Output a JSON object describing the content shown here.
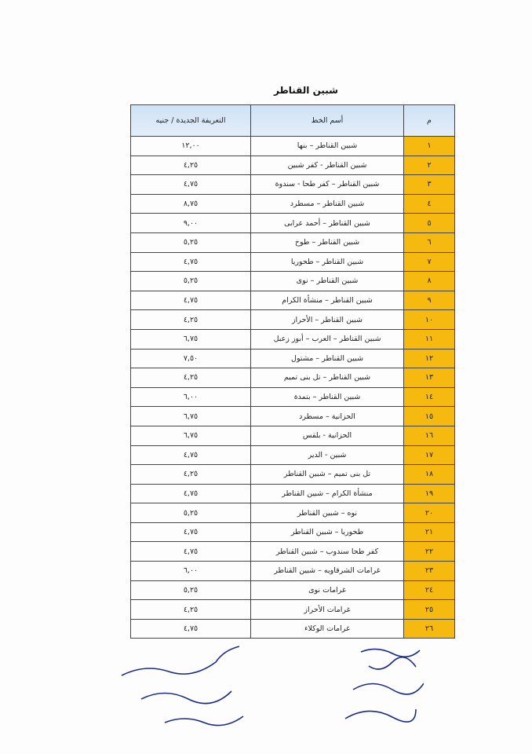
{
  "title": "شبين القناطر",
  "headers": {
    "number": "م",
    "line_name": "أسم الخط",
    "fare": "التعريفة الجديدة / جنيه"
  },
  "colors": {
    "number_column": "#f6b90f",
    "header": "#d6e6f5"
  },
  "rows": [
    {
      "n": "١",
      "name": "شبين القناطر – بنها",
      "fare": "١٢,٠٠"
    },
    {
      "n": "٢",
      "name": "شبين القناطر - كفر شبين",
      "fare": "٤,٢٥"
    },
    {
      "n": "٣",
      "name": "شبين القناطر – كفر طحا - سندوة",
      "fare": "٤,٧٥"
    },
    {
      "n": "٤",
      "name": "شبين القناطر – مسطرد",
      "fare": "٨,٧٥"
    },
    {
      "n": "٥",
      "name": "شبين القناطر – أحمد عرابى",
      "fare": "٩,٠٠"
    },
    {
      "n": "٦",
      "name": "شبين القناطر – طوخ",
      "fare": "٥,٢٥"
    },
    {
      "n": "٧",
      "name": "شبين القناطر – طحوريا",
      "fare": "٤,٧٥"
    },
    {
      "n": "٨",
      "name": "شبين القناطر – نوى",
      "fare": "٥,٢٥"
    },
    {
      "n": "٩",
      "name": "شبين القناطر – منشأة الكرام",
      "fare": "٤,٧٥"
    },
    {
      "n": "١٠",
      "name": "شبين القناطر – الأحراز",
      "fare": "٤,٢٥"
    },
    {
      "n": "١١",
      "name": "شبين القناطر – العرب – أبوز زعبل",
      "fare": "٦,٧٥"
    },
    {
      "n": "١٢",
      "name": "شبين القناطر – مشتول",
      "fare": "٧,٥٠"
    },
    {
      "n": "١٣",
      "name": "شبين القناطر – تل بنى تميم",
      "fare": "٤,٢٥"
    },
    {
      "n": "١٤",
      "name": "شبين القناطر – بتمدة",
      "fare": "٦,٠٠"
    },
    {
      "n": "١٥",
      "name": "الحزانية – مسطرد",
      "fare": "٦,٧٥"
    },
    {
      "n": "١٦",
      "name": "الحزانية - بلقس",
      "fare": "٦,٧٥"
    },
    {
      "n": "١٧",
      "name": "شبين - الدير",
      "fare": "٤,٧٥"
    },
    {
      "n": "١٨",
      "name": "تل بنى تميم – شبين القناطر",
      "fare": "٤,٢٥"
    },
    {
      "n": "١٩",
      "name": "منشأة الكرام – شبين القناطر",
      "fare": "٤,٧٥"
    },
    {
      "n": "٢٠",
      "name": "نوه – شبين القناطر",
      "fare": "٥,٢٥"
    },
    {
      "n": "٢١",
      "name": "طحوريا – شبين القناطر",
      "fare": "٤,٧٥"
    },
    {
      "n": "٢٢",
      "name": "كفر طحا سندوب – شبين القناطر",
      "fare": "٤,٧٥"
    },
    {
      "n": "٢٣",
      "name": "غرامات الشرقاويه – شبين القناطر",
      "fare": "٦,٠٠"
    },
    {
      "n": "٢٤",
      "name": "غرامات نوى",
      "fare": "٥,٢٥"
    },
    {
      "n": "٢٥",
      "name": "غرامات الأحراز",
      "fare": "٤,٢٥"
    },
    {
      "n": "٢٦",
      "name": "غرامات الوكلاء",
      "fare": "٤,٧٥"
    }
  ],
  "signatures": [
    "١- محمد العطوطى",
    "٢- محمود سلام",
    "٣- ماهر ...",
    "٤- رضا عطيه محمد",
    "٥- ...",
    "٦- ...",
    "٧- ممدوح قطب"
  ]
}
